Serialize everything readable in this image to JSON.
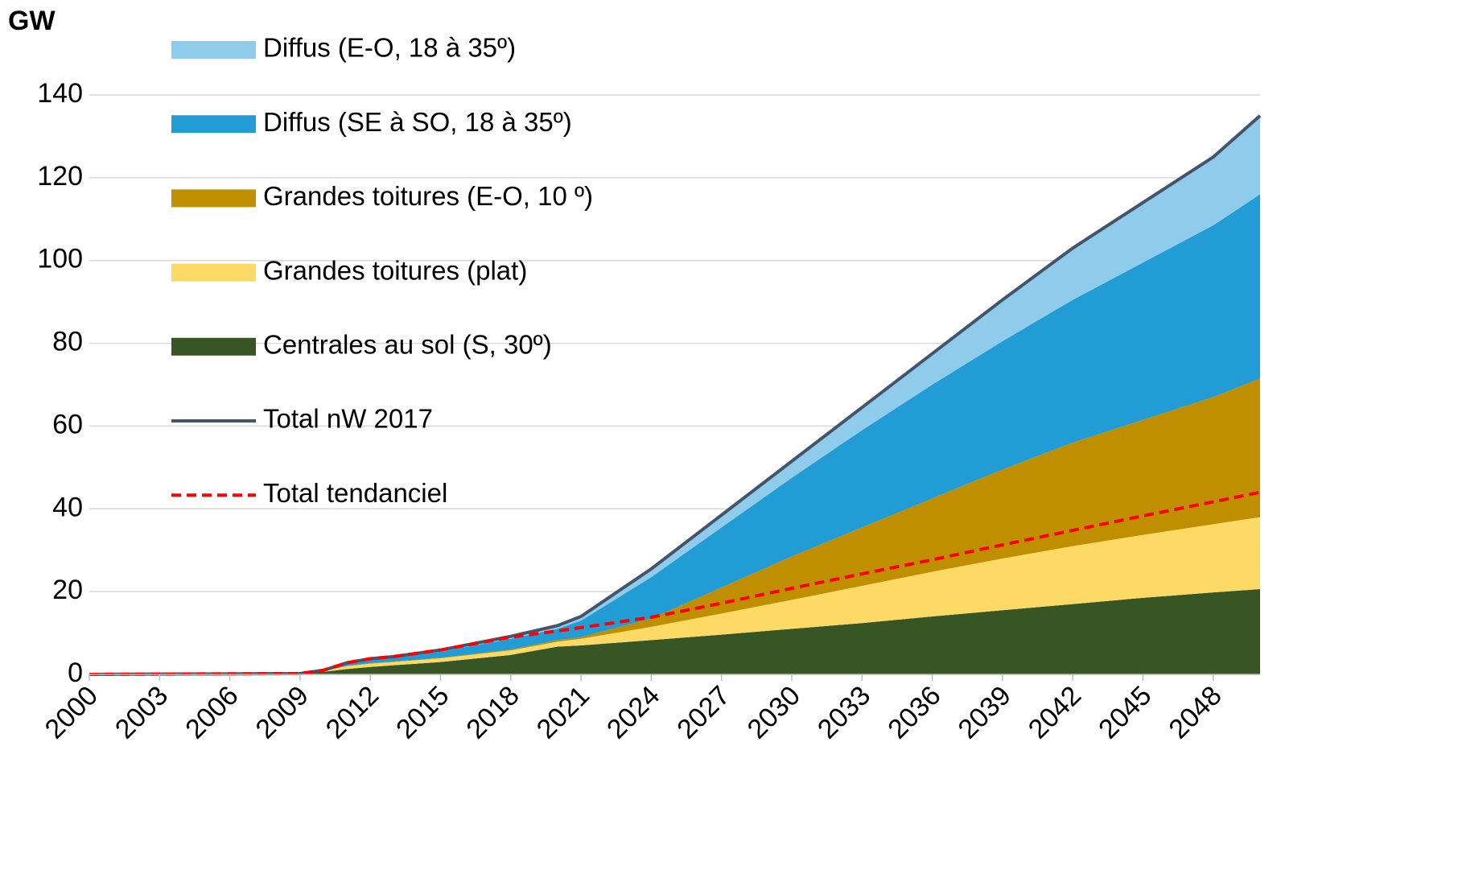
{
  "chart_data": {
    "type": "stacked-area",
    "ylabel": "GW",
    "x": [
      2000,
      2009,
      2010,
      2011,
      2012,
      2013,
      2015,
      2018,
      2020,
      2021,
      2024,
      2027,
      2030,
      2033,
      2036,
      2039,
      2042,
      2045,
      2048,
      2050
    ],
    "xlim": [
      2000,
      2050
    ],
    "xticks": [
      2000,
      2003,
      2006,
      2009,
      2012,
      2015,
      2018,
      2021,
      2024,
      2027,
      2030,
      2033,
      2036,
      2039,
      2042,
      2045,
      2048
    ],
    "ylim": [
      0,
      140
    ],
    "yticks": [
      0,
      20,
      40,
      60,
      80,
      100,
      120,
      140
    ],
    "grid": true,
    "series": [
      {
        "name": "Diffus (E-O, 18 à 35º)",
        "color": "#8fcbea",
        "kind": "area",
        "values": [
          0,
          0,
          0.1,
          0.2,
          0.3,
          0.3,
          0.4,
          0.6,
          0.8,
          1.0,
          2.0,
          3.0,
          4.0,
          5.5,
          7.5,
          10,
          12.5,
          14.5,
          16.5,
          19
        ]
      },
      {
        "name": "Diffus (SE à SO, 18 à 35º)",
        "color": "#229cd4",
        "kind": "area",
        "values": [
          0,
          0,
          0.1,
          0.5,
          0.8,
          0.9,
          1.5,
          2.6,
          2.7,
          4.0,
          10,
          14.5,
          19,
          23.5,
          27.5,
          31,
          34.5,
          38,
          41.5,
          44.5
        ]
      },
      {
        "name": "Grandes toitures (E-O, 10 º)",
        "color": "#bf8f00",
        "kind": "area",
        "values": [
          0,
          0,
          0,
          0.1,
          0.1,
          0.1,
          0.1,
          0.2,
          0.4,
          0.4,
          2.0,
          6.3,
          10.5,
          14.1,
          17.7,
          21.5,
          25,
          27.8,
          30.7,
          33.5
        ]
      },
      {
        "name": "Grandes toitures (plat)",
        "color": "#fdd966",
        "kind": "area",
        "values": [
          0,
          0,
          0.2,
          0.7,
          0.8,
          0.8,
          0.9,
          1.1,
          1.2,
          1.6,
          3.2,
          5.1,
          7.0,
          9.0,
          10.8,
          12.5,
          14.0,
          15.2,
          16.5,
          17.4
        ]
      },
      {
        "name": "Centrales au sol (S, 30º)",
        "color": "#375623",
        "kind": "area",
        "values": [
          0,
          0.2,
          0.6,
          1.3,
          1.8,
          2.2,
          3.0,
          4.7,
          6.7,
          7.0,
          8.3,
          9.6,
          11.0,
          12.4,
          14.0,
          15.5,
          17.0,
          18.5,
          19.8,
          20.6
        ]
      },
      {
        "name": "Total nW 2017",
        "color": "#44546a",
        "kind": "line",
        "values": [
          0,
          0.2,
          1.0,
          2.8,
          3.8,
          4.3,
          5.9,
          9.2,
          11.8,
          14,
          25.5,
          38.5,
          51.5,
          64.5,
          77.5,
          90.5,
          103,
          114,
          125,
          135
        ]
      },
      {
        "name": "Total tendanciel",
        "color": "#ff0000",
        "kind": "dashed-line",
        "values": [
          0,
          0.2,
          1.0,
          2.8,
          3.8,
          4.3,
          5.9,
          9.0,
          10.5,
          11.3,
          13.8,
          17.2,
          20.8,
          24.3,
          27.7,
          31.3,
          34.8,
          38.3,
          41.7,
          44
        ]
      }
    ]
  }
}
